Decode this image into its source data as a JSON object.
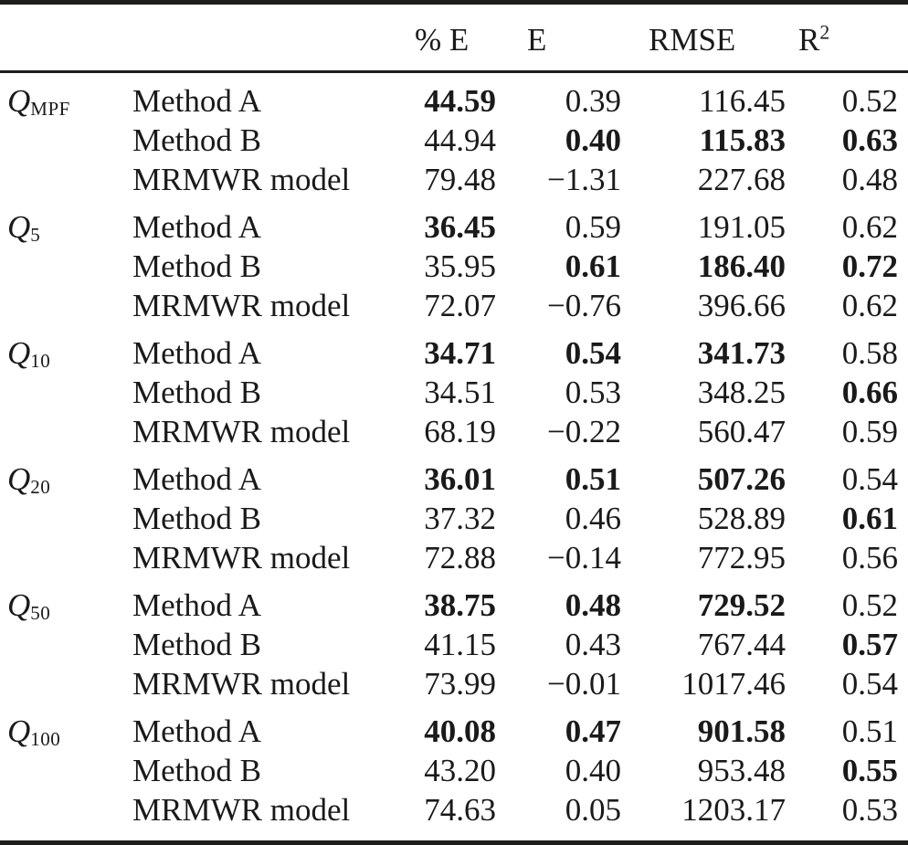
{
  "table": {
    "header": {
      "pe": "% E",
      "e": "E",
      "rmse": "RMSE",
      "r2": {
        "base": "R",
        "sup": "2"
      }
    },
    "groups": [
      {
        "label": {
          "base": "Q",
          "sub": "MPF"
        },
        "rows": [
          {
            "method": "Method A",
            "values": [
              {
                "v": "44.59",
                "b": true
              },
              {
                "v": "0.39",
                "b": false
              },
              {
                "v": "116.45",
                "b": false
              },
              {
                "v": "0.52",
                "b": false
              }
            ]
          },
          {
            "method": "Method B",
            "values": [
              {
                "v": "44.94",
                "b": false
              },
              {
                "v": "0.40",
                "b": true
              },
              {
                "v": "115.83",
                "b": true
              },
              {
                "v": "0.63",
                "b": true
              }
            ]
          },
          {
            "method": "MRMWR model",
            "values": [
              {
                "v": "79.48",
                "b": false
              },
              {
                "v": "−1.31",
                "b": false
              },
              {
                "v": "227.68",
                "b": false
              },
              {
                "v": "0.48",
                "b": false
              }
            ]
          }
        ]
      },
      {
        "label": {
          "base": "Q",
          "sub": "5"
        },
        "rows": [
          {
            "method": "Method A",
            "values": [
              {
                "v": "36.45",
                "b": true
              },
              {
                "v": "0.59",
                "b": false
              },
              {
                "v": "191.05",
                "b": false
              },
              {
                "v": "0.62",
                "b": false
              }
            ]
          },
          {
            "method": "Method B",
            "values": [
              {
                "v": "35.95",
                "b": false
              },
              {
                "v": "0.61",
                "b": true
              },
              {
                "v": "186.40",
                "b": true
              },
              {
                "v": "0.72",
                "b": true
              }
            ]
          },
          {
            "method": "MRMWR model",
            "values": [
              {
                "v": "72.07",
                "b": false
              },
              {
                "v": "−0.76",
                "b": false
              },
              {
                "v": "396.66",
                "b": false
              },
              {
                "v": "0.62",
                "b": false
              }
            ]
          }
        ]
      },
      {
        "label": {
          "base": "Q",
          "sub": "10"
        },
        "rows": [
          {
            "method": "Method A",
            "values": [
              {
                "v": "34.71",
                "b": true
              },
              {
                "v": "0.54",
                "b": true
              },
              {
                "v": "341.73",
                "b": true
              },
              {
                "v": "0.58",
                "b": false
              }
            ]
          },
          {
            "method": "Method B",
            "values": [
              {
                "v": "34.51",
                "b": false
              },
              {
                "v": "0.53",
                "b": false
              },
              {
                "v": "348.25",
                "b": false
              },
              {
                "v": "0.66",
                "b": true
              }
            ]
          },
          {
            "method": "MRMWR model",
            "values": [
              {
                "v": "68.19",
                "b": false
              },
              {
                "v": "−0.22",
                "b": false
              },
              {
                "v": "560.47",
                "b": false
              },
              {
                "v": "0.59",
                "b": false
              }
            ]
          }
        ]
      },
      {
        "label": {
          "base": "Q",
          "sub": "20"
        },
        "rows": [
          {
            "method": "Method A",
            "values": [
              {
                "v": "36.01",
                "b": true
              },
              {
                "v": "0.51",
                "b": true
              },
              {
                "v": "507.26",
                "b": true
              },
              {
                "v": "0.54",
                "b": false
              }
            ]
          },
          {
            "method": "Method B",
            "values": [
              {
                "v": "37.32",
                "b": false
              },
              {
                "v": "0.46",
                "b": false
              },
              {
                "v": "528.89",
                "b": false
              },
              {
                "v": "0.61",
                "b": true
              }
            ]
          },
          {
            "method": "MRMWR model",
            "values": [
              {
                "v": "72.88",
                "b": false
              },
              {
                "v": "−0.14",
                "b": false
              },
              {
                "v": "772.95",
                "b": false
              },
              {
                "v": "0.56",
                "b": false
              }
            ]
          }
        ]
      },
      {
        "label": {
          "base": "Q",
          "sub": "50"
        },
        "rows": [
          {
            "method": "Method A",
            "values": [
              {
                "v": "38.75",
                "b": true
              },
              {
                "v": "0.48",
                "b": true
              },
              {
                "v": "729.52",
                "b": true
              },
              {
                "v": "0.52",
                "b": false
              }
            ]
          },
          {
            "method": "Method B",
            "values": [
              {
                "v": "41.15",
                "b": false
              },
              {
                "v": "0.43",
                "b": false
              },
              {
                "v": "767.44",
                "b": false
              },
              {
                "v": "0.57",
                "b": true
              }
            ]
          },
          {
            "method": "MRMWR model",
            "values": [
              {
                "v": "73.99",
                "b": false
              },
              {
                "v": "−0.01",
                "b": false
              },
              {
                "v": "1017.46",
                "b": false
              },
              {
                "v": "0.54",
                "b": false
              }
            ]
          }
        ]
      },
      {
        "label": {
          "base": "Q",
          "sub": "100"
        },
        "rows": [
          {
            "method": "Method A",
            "values": [
              {
                "v": "40.08",
                "b": true
              },
              {
                "v": "0.47",
                "b": true
              },
              {
                "v": "901.58",
                "b": true
              },
              {
                "v": "0.51",
                "b": false
              }
            ]
          },
          {
            "method": "Method B",
            "values": [
              {
                "v": "43.20",
                "b": false
              },
              {
                "v": "0.40",
                "b": false
              },
              {
                "v": "953.48",
                "b": false
              },
              {
                "v": "0.55",
                "b": true
              }
            ]
          },
          {
            "method": "MRMWR model",
            "values": [
              {
                "v": "74.63",
                "b": false
              },
              {
                "v": "0.05",
                "b": false
              },
              {
                "v": "1203.17",
                "b": false
              },
              {
                "v": "0.53",
                "b": false
              }
            ]
          }
        ]
      }
    ],
    "colors": {
      "text": "#1a1a1a",
      "rule": "#1d1d1b",
      "background": "#ffffff"
    }
  }
}
